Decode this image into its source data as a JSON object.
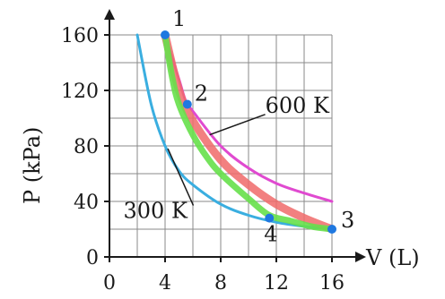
{
  "chart_data": {
    "type": "line",
    "xlabel": "V (L)",
    "ylabel": "P (kPa)",
    "xlim": [
      0,
      16
    ],
    "ylim": [
      0,
      160
    ],
    "x_ticks": [
      0,
      4,
      8,
      12,
      16
    ],
    "y_ticks": [
      0,
      40,
      80,
      120,
      160
    ],
    "grid": true,
    "series": [
      {
        "name": "300 K",
        "color": "#3aaee0",
        "x": [
          2.0,
          3.0,
          4.0,
          5.0,
          6.0,
          8.0,
          10.0,
          12.0,
          14.0,
          16.0
        ],
        "y": [
          160,
          110,
          80,
          62,
          52,
          38,
          30,
          25,
          22,
          20
        ]
      },
      {
        "name": "600 K",
        "color": "#e04ad0",
        "x": [
          4.0,
          5.0,
          5.5,
          6.0,
          8.0,
          10.0,
          12.0,
          14.0,
          16.0
        ],
        "y": [
          160,
          128,
          112,
          105,
          80,
          64,
          53,
          46,
          40
        ]
      },
      {
        "color": "#f06a6a",
        "x": [
          4.0,
          5.0,
          6.0,
          8.0,
          10.0,
          12.0,
          14.0,
          16.0
        ],
        "y": [
          160,
          120,
          98,
          70,
          52,
          38,
          28,
          20
        ]
      },
      {
        "color": "#66e04a",
        "x": [
          4.0,
          4.5,
          5.0,
          6.0,
          7.0,
          8.0,
          10.0,
          11.5,
          13.0,
          14.5,
          16.0
        ],
        "y": [
          160,
          130,
          110,
          88,
          72,
          60,
          42,
          30,
          26,
          22,
          20
        ]
      }
    ],
    "points": [
      {
        "label": "1",
        "x": 4.0,
        "y": 160
      },
      {
        "label": "2",
        "x": 5.6,
        "y": 110
      },
      {
        "label": "3",
        "x": 16.0,
        "y": 20
      },
      {
        "label": "4",
        "x": 11.5,
        "y": 28
      }
    ],
    "annotations": [
      {
        "text": "600 K",
        "x": 11.2,
        "y": 104,
        "target_x": 7.2,
        "target_y": 88
      },
      {
        "text": "300 K",
        "x": 1.0,
        "y": 28,
        "target_x": 4.2,
        "target_y": 78
      }
    ],
    "point_color": "#1f78e0"
  }
}
